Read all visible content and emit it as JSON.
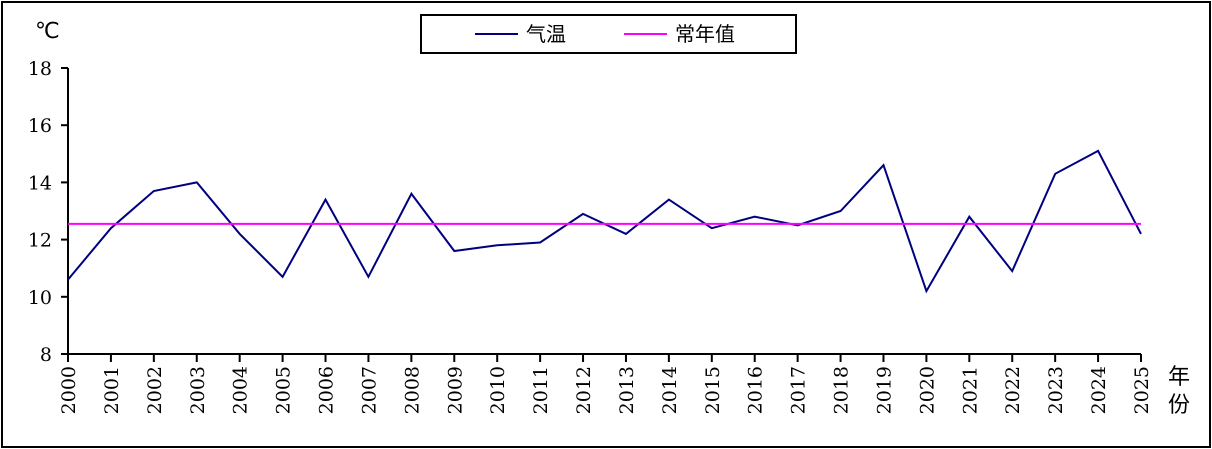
{
  "chart_data": {
    "type": "line",
    "ylabel": "℃",
    "xlabel": "年份",
    "ylim": [
      8,
      18
    ],
    "yticks": [
      8,
      10,
      12,
      14,
      16,
      18
    ],
    "grid": false,
    "legend_position": "top-center",
    "x": [
      "2000",
      "2001",
      "2002",
      "2003",
      "2004",
      "2005",
      "2006",
      "2007",
      "2008",
      "2009",
      "2010",
      "2011",
      "2012",
      "2013",
      "2014",
      "2015",
      "2016",
      "2017",
      "2018",
      "2019",
      "2020",
      "2021",
      "2022",
      "2023",
      "2024",
      "2025"
    ],
    "series": [
      {
        "name": "气温",
        "color": "#000080",
        "values": [
          10.6,
          12.4,
          13.7,
          14.0,
          12.2,
          10.7,
          13.4,
          10.7,
          13.6,
          11.6,
          11.8,
          11.9,
          12.9,
          12.2,
          13.4,
          12.4,
          12.8,
          12.5,
          13.0,
          14.6,
          10.2,
          12.8,
          10.9,
          14.3,
          15.1,
          12.2
        ]
      },
      {
        "name": "常年值",
        "color": "#ff00ff",
        "values": [
          12.55,
          12.55,
          12.55,
          12.55,
          12.55,
          12.55,
          12.55,
          12.55,
          12.55,
          12.55,
          12.55,
          12.55,
          12.55,
          12.55,
          12.55,
          12.55,
          12.55,
          12.55,
          12.55,
          12.55,
          12.55,
          12.55,
          12.55,
          12.55,
          12.55,
          12.55
        ]
      }
    ]
  }
}
